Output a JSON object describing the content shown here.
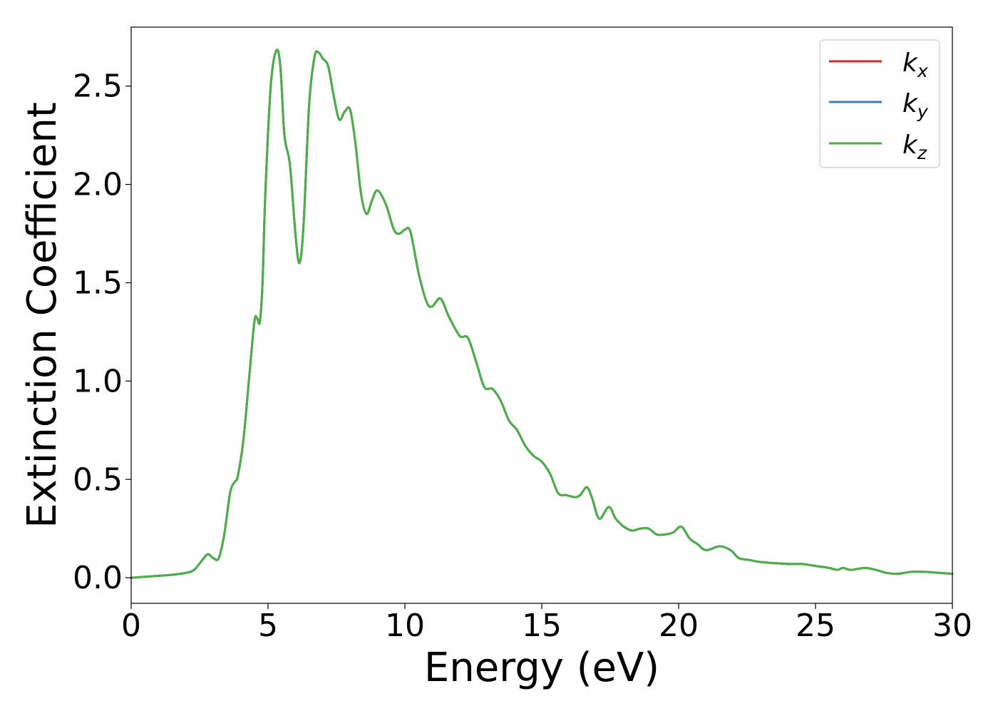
{
  "chart_data": {
    "type": "line",
    "title": "",
    "xlabel": "Energy (eV)",
    "ylabel": "Extinction Coefficient",
    "xlim": [
      0,
      30
    ],
    "ylim": [
      -0.13,
      2.8
    ],
    "xticks": [
      0,
      5,
      10,
      15,
      20,
      25,
      30
    ],
    "xtick_labels": [
      "0",
      "5",
      "10",
      "15",
      "20",
      "25",
      "30"
    ],
    "yticks": [
      0.0,
      0.5,
      1.0,
      1.5,
      2.0,
      2.5
    ],
    "ytick_labels": [
      "0.0",
      "0.5",
      "1.0",
      "1.5",
      "2.0",
      "2.5"
    ],
    "grid": false,
    "legend_position": "top-right",
    "x": [
      0,
      1,
      1.5,
      2,
      2.3,
      2.6,
      2.8,
      3.0,
      3.2,
      3.4,
      3.6,
      3.7,
      3.8,
      3.9,
      4.1,
      4.3,
      4.5,
      4.6,
      4.7,
      4.8,
      4.9,
      5.1,
      5.3,
      5.45,
      5.6,
      5.8,
      6.0,
      6.15,
      6.3,
      6.5,
      6.7,
      6.85,
      7.0,
      7.2,
      7.4,
      7.6,
      7.8,
      8.0,
      8.2,
      8.4,
      8.6,
      8.8,
      9.0,
      9.3,
      9.6,
      9.8,
      10.0,
      10.2,
      10.5,
      10.8,
      11.0,
      11.3,
      11.6,
      12.0,
      12.3,
      12.6,
      12.9,
      13.2,
      13.5,
      13.8,
      14.1,
      14.4,
      14.7,
      15.0,
      15.3,
      15.6,
      15.9,
      16.2,
      16.4,
      16.65,
      16.85,
      17.1,
      17.45,
      17.7,
      18.0,
      18.3,
      18.6,
      18.9,
      19.2,
      19.5,
      19.8,
      20.1,
      20.4,
      20.7,
      21.0,
      21.5,
      21.9,
      22.2,
      22.6,
      23.0,
      24.0,
      24.5,
      25.0,
      25.5,
      25.8,
      26.0,
      26.3,
      26.8,
      27.2,
      27.6,
      28.0,
      28.5,
      29.0,
      29.5,
      30.0
    ],
    "series": [
      {
        "name": "k_x",
        "color": "#d62728",
        "values": [
          0.0,
          0.01,
          0.015,
          0.025,
          0.04,
          0.09,
          0.12,
          0.1,
          0.1,
          0.22,
          0.42,
          0.47,
          0.49,
          0.52,
          0.7,
          1.0,
          1.3,
          1.32,
          1.3,
          1.5,
          1.95,
          2.5,
          2.68,
          2.6,
          2.25,
          2.1,
          1.75,
          1.6,
          1.8,
          2.4,
          2.65,
          2.67,
          2.64,
          2.6,
          2.45,
          2.33,
          2.37,
          2.38,
          2.2,
          1.95,
          1.85,
          1.92,
          1.97,
          1.9,
          1.77,
          1.75,
          1.77,
          1.76,
          1.55,
          1.4,
          1.38,
          1.42,
          1.33,
          1.23,
          1.22,
          1.1,
          0.97,
          0.96,
          0.9,
          0.8,
          0.75,
          0.67,
          0.62,
          0.59,
          0.53,
          0.43,
          0.42,
          0.41,
          0.42,
          0.46,
          0.4,
          0.3,
          0.36,
          0.3,
          0.26,
          0.24,
          0.25,
          0.25,
          0.22,
          0.22,
          0.23,
          0.26,
          0.2,
          0.17,
          0.14,
          0.16,
          0.14,
          0.1,
          0.09,
          0.08,
          0.07,
          0.07,
          0.06,
          0.05,
          0.04,
          0.05,
          0.04,
          0.05,
          0.04,
          0.025,
          0.02,
          0.03,
          0.03,
          0.025,
          0.02
        ]
      },
      {
        "name": "k_y",
        "color": "#377eb8",
        "values": [
          0.0,
          0.01,
          0.015,
          0.025,
          0.04,
          0.09,
          0.12,
          0.1,
          0.1,
          0.22,
          0.42,
          0.47,
          0.49,
          0.52,
          0.7,
          1.0,
          1.3,
          1.32,
          1.3,
          1.5,
          1.95,
          2.5,
          2.68,
          2.6,
          2.25,
          2.1,
          1.75,
          1.6,
          1.8,
          2.4,
          2.65,
          2.67,
          2.64,
          2.6,
          2.45,
          2.33,
          2.37,
          2.38,
          2.2,
          1.95,
          1.85,
          1.92,
          1.97,
          1.9,
          1.77,
          1.75,
          1.77,
          1.76,
          1.55,
          1.4,
          1.38,
          1.42,
          1.33,
          1.23,
          1.22,
          1.1,
          0.97,
          0.96,
          0.9,
          0.8,
          0.75,
          0.67,
          0.62,
          0.59,
          0.53,
          0.43,
          0.42,
          0.41,
          0.42,
          0.46,
          0.4,
          0.3,
          0.36,
          0.3,
          0.26,
          0.24,
          0.25,
          0.25,
          0.22,
          0.22,
          0.23,
          0.26,
          0.2,
          0.17,
          0.14,
          0.16,
          0.14,
          0.1,
          0.09,
          0.08,
          0.07,
          0.07,
          0.06,
          0.05,
          0.04,
          0.05,
          0.04,
          0.05,
          0.04,
          0.025,
          0.02,
          0.03,
          0.03,
          0.025,
          0.02
        ]
      },
      {
        "name": "k_z",
        "color": "#4daf4a",
        "values": [
          0.0,
          0.01,
          0.015,
          0.025,
          0.04,
          0.09,
          0.12,
          0.1,
          0.1,
          0.22,
          0.42,
          0.47,
          0.49,
          0.52,
          0.7,
          1.0,
          1.3,
          1.32,
          1.3,
          1.5,
          1.95,
          2.5,
          2.68,
          2.6,
          2.25,
          2.1,
          1.75,
          1.6,
          1.8,
          2.4,
          2.65,
          2.67,
          2.64,
          2.6,
          2.45,
          2.33,
          2.37,
          2.38,
          2.2,
          1.95,
          1.85,
          1.92,
          1.97,
          1.9,
          1.77,
          1.75,
          1.77,
          1.76,
          1.55,
          1.4,
          1.38,
          1.42,
          1.33,
          1.23,
          1.22,
          1.1,
          0.97,
          0.96,
          0.9,
          0.8,
          0.75,
          0.67,
          0.62,
          0.59,
          0.53,
          0.43,
          0.42,
          0.41,
          0.42,
          0.46,
          0.4,
          0.3,
          0.36,
          0.3,
          0.26,
          0.24,
          0.25,
          0.25,
          0.22,
          0.22,
          0.23,
          0.26,
          0.2,
          0.17,
          0.14,
          0.16,
          0.14,
          0.1,
          0.09,
          0.08,
          0.07,
          0.07,
          0.06,
          0.05,
          0.04,
          0.05,
          0.04,
          0.05,
          0.04,
          0.025,
          0.02,
          0.03,
          0.03,
          0.025,
          0.02
        ]
      }
    ],
    "legend": {
      "entries": [
        {
          "base": "k",
          "sub": "x",
          "color": "#d62728"
        },
        {
          "base": "k",
          "sub": "y",
          "color": "#377eb8"
        },
        {
          "base": "k",
          "sub": "z",
          "color": "#4daf4a"
        }
      ]
    }
  }
}
